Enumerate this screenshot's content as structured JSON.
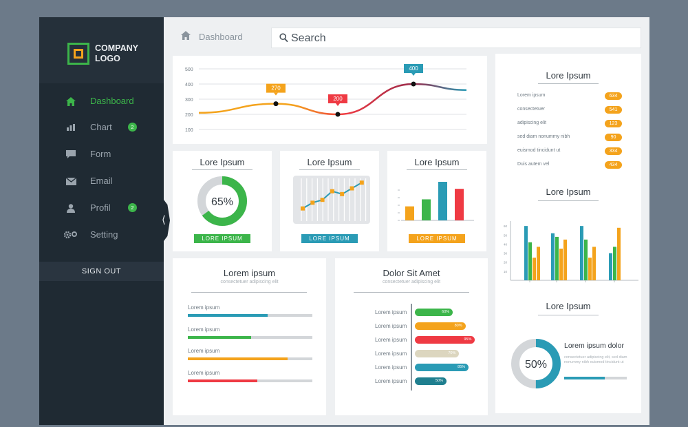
{
  "sidebar": {
    "logo_line1": "COMPANY",
    "logo_line2": "LOGO",
    "items": [
      {
        "label": "Dashboard",
        "icon": "home-icon"
      },
      {
        "label": "Chart",
        "icon": "bar-chart-icon",
        "badge": "2"
      },
      {
        "label": "Form",
        "icon": "chat-bubble-icon"
      },
      {
        "label": "Email",
        "icon": "envelope-icon"
      },
      {
        "label": "Profil",
        "icon": "user-icon",
        "badge": "2"
      },
      {
        "label": "Setting",
        "icon": "gears-icon"
      }
    ],
    "sign_out": "SIGN OUT",
    "active_color": "#3cb54a"
  },
  "header": {
    "breadcrumb": "Dashboard",
    "search_label": "Search"
  },
  "colors": {
    "green": "#3cb54a",
    "orange": "#f4a31c",
    "red": "#ef3a43",
    "teal": "#2a9bb5",
    "beige": "#dcd6bf",
    "dark_teal": "#1f7f8f"
  },
  "line_card": {
    "chart_data": {
      "type": "line",
      "y_ticks": [
        "500",
        "400",
        "300",
        "200",
        "100"
      ],
      "ylim": [
        100,
        500
      ],
      "points": [
        [
          0,
          210
        ],
        [
          1,
          270
        ],
        [
          2,
          200
        ],
        [
          3,
          400
        ],
        [
          4,
          360
        ]
      ],
      "markers": [
        {
          "label": "270",
          "color": "#f4a31c"
        },
        {
          "label": "200",
          "color": "#ef3a43"
        },
        {
          "label": "400",
          "color": "#2a9bb5"
        }
      ]
    }
  },
  "donut_card": {
    "title": "Lore Ipsum",
    "value_label": "65%",
    "percent": 65,
    "button": "LORE IPSUM"
  },
  "trend_card": {
    "title": "Lore Ipsum",
    "button": "LORE IPSUM",
    "chart_data": {
      "type": "line",
      "values": [
        1,
        2,
        2.5,
        4,
        3.5,
        4.5,
        5.5
      ]
    }
  },
  "bars_card": {
    "title": "Lore Ipsum",
    "button": "LORE IPSUM",
    "chart_data": {
      "type": "bar",
      "values": [
        2,
        3,
        5.5,
        4.5
      ],
      "colors": [
        "#f4a31c",
        "#3cb54a",
        "#2a9bb5",
        "#ef3a43"
      ]
    }
  },
  "progress_card": {
    "title": "Lorem ipsum",
    "subtitle": "consectetuer adipiscing elit",
    "rows": [
      {
        "label": "Lorem ipsum",
        "percent": 64,
        "color": "#2a9bb5"
      },
      {
        "label": "Lorem ipsum",
        "percent": 51,
        "color": "#3cb54a"
      },
      {
        "label": "Lorem ipsum",
        "percent": 80,
        "color": "#f4a31c"
      },
      {
        "label": "Lorem ipsum",
        "percent": 56,
        "color": "#ef3a43"
      }
    ]
  },
  "dolor_card": {
    "title": "Dolor Sit Amet",
    "subtitle": "consectetuer adipiscing elit",
    "rows": [
      {
        "label": "Lorem ipsum",
        "value": "60%",
        "percent": 60,
        "color": "#3cb54a"
      },
      {
        "label": "Lorem ipsum",
        "value": "80%",
        "percent": 80,
        "color": "#f4a31c"
      },
      {
        "label": "Lorem ipsum",
        "value": "95%",
        "percent": 95,
        "color": "#ef3a43"
      },
      {
        "label": "Lorem ipsum",
        "value": "70%",
        "percent": 70,
        "color": "#dcd6bf"
      },
      {
        "label": "Lorem ipsum",
        "value": "85%",
        "percent": 85,
        "color": "#2a9bb5"
      },
      {
        "label": "Lorem ipsum",
        "value": "50%",
        "percent": 50,
        "color": "#1f7f8f"
      }
    ]
  },
  "right_panel": {
    "list_title": "Lore Ipsum",
    "list": [
      {
        "label": "Lorem ipsum",
        "value": "634"
      },
      {
        "label": "consectetuer",
        "value": "541"
      },
      {
        "label": "adipiscing elit",
        "value": "123"
      },
      {
        "label": "sed diam nonummy nibh",
        "value": "90"
      },
      {
        "label": "euismod tincidunt ut",
        "value": "334"
      },
      {
        "label": "Duis autem vel",
        "value": "434"
      }
    ],
    "bars_title": "Lore Ipsum",
    "chart_data": {
      "type": "bar",
      "y_ticks": [
        "60",
        "50",
        "40",
        "30",
        "20",
        "10"
      ],
      "ylim": [
        0,
        70
      ],
      "groups": [
        [
          60,
          42,
          25,
          37
        ],
        [
          52,
          48,
          35,
          45
        ],
        [
          60,
          45,
          25,
          37
        ],
        [
          30,
          37,
          58
        ]
      ],
      "colors": [
        "#2a9bb5",
        "#3cb54a",
        "#f4a31c",
        "#f4a31c"
      ]
    },
    "donut_title": "Lore Ipsum",
    "donut_value": "50%",
    "donut_percent": 50,
    "donut_heading": "Lorem ipsum dolor",
    "donut_text": "consectetuer adipiscing elit, sed diam nonummy nibh euismod tincidunt ut",
    "donut_bar_percent": 65
  }
}
